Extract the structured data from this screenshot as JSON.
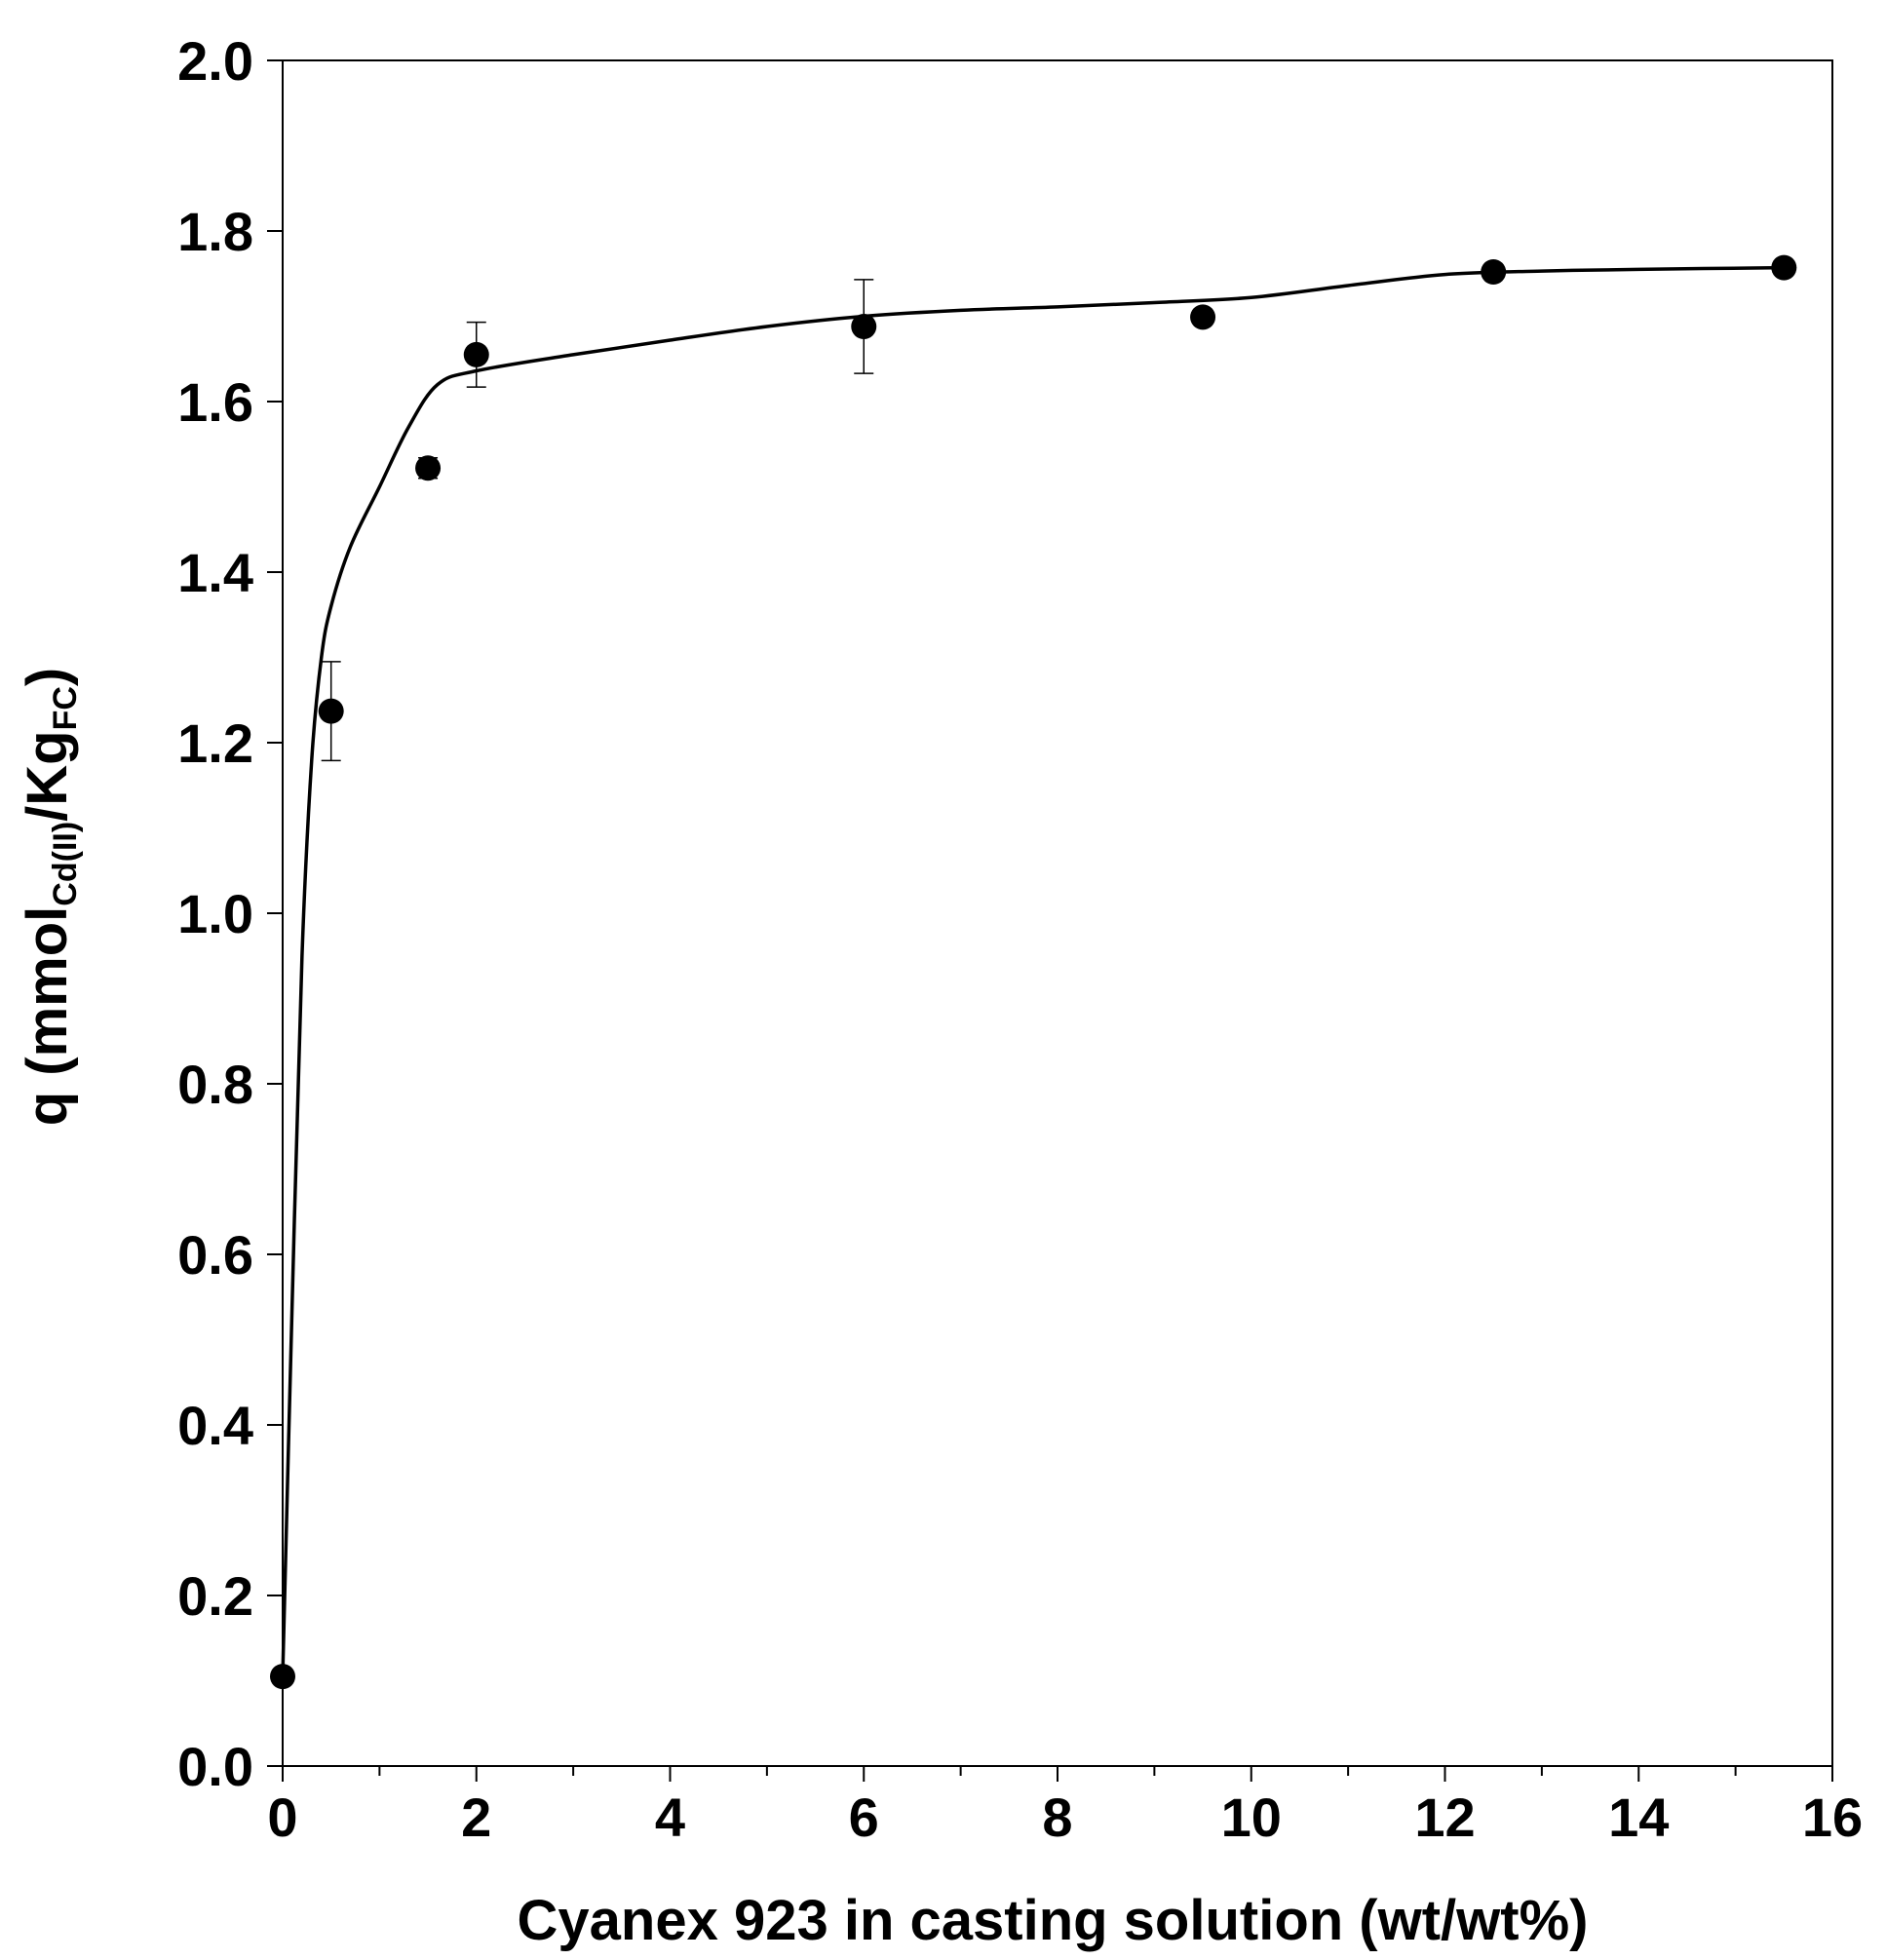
{
  "chart_data": {
    "type": "scatter",
    "title": "",
    "xlabel": "Cyanex 923 in casting solution (wt/wt%)",
    "ylabel": {
      "prefix": "q (mmol",
      "sub1": "Cd(II)",
      "mid": "/Kg",
      "sub2": "FC",
      "suffix": ")"
    },
    "xlim": [
      0,
      16
    ],
    "ylim": [
      0,
      2
    ],
    "x_ticks": [
      0,
      2,
      4,
      6,
      8,
      10,
      12,
      14,
      16
    ],
    "x_tick_labels": [
      "0",
      "2",
      "4",
      "6",
      "8",
      "10",
      "12",
      "14",
      "16"
    ],
    "y_ticks": [
      0,
      0.2,
      0.4,
      0.6,
      0.8,
      1.0,
      1.2,
      1.4,
      1.6,
      1.8,
      2.0
    ],
    "y_tick_labels": [
      "0.0",
      "0.2",
      "0.4",
      "0.6",
      "0.8",
      "1.0",
      "1.2",
      "1.4",
      "1.6",
      "1.8",
      "2.0"
    ],
    "grid": false,
    "series": [
      {
        "points": [
          {
            "x": 0,
            "y": 0.105,
            "err": 0
          },
          {
            "x": 0.5,
            "y": 1.237,
            "err": 0.058
          },
          {
            "x": 1.5,
            "y": 1.522,
            "err": 0.012
          },
          {
            "x": 2,
            "y": 1.655,
            "err": 0.038
          },
          {
            "x": 6,
            "y": 1.688,
            "err": 0.055
          },
          {
            "x": 9.5,
            "y": 1.699,
            "err": 0
          },
          {
            "x": 12.5,
            "y": 1.752,
            "err": 0
          },
          {
            "x": 15.5,
            "y": 1.757,
            "err": 0
          }
        ]
      }
    ],
    "fit_curve": [
      [
        0,
        0.105
      ],
      [
        0.1,
        0.55
      ],
      [
        0.2,
        0.95
      ],
      [
        0.3,
        1.18
      ],
      [
        0.4,
        1.3
      ],
      [
        0.5,
        1.36
      ],
      [
        0.7,
        1.43
      ],
      [
        1.0,
        1.5
      ],
      [
        1.3,
        1.57
      ],
      [
        1.6,
        1.62
      ],
      [
        2.0,
        1.636
      ],
      [
        3.0,
        1.655
      ],
      [
        4.0,
        1.672
      ],
      [
        5.0,
        1.688
      ],
      [
        6.0,
        1.7
      ],
      [
        7.0,
        1.707
      ],
      [
        8.0,
        1.711
      ],
      [
        9.0,
        1.716
      ],
      [
        10.0,
        1.722
      ],
      [
        11.0,
        1.736
      ],
      [
        12.0,
        1.749
      ],
      [
        13.0,
        1.753
      ],
      [
        14.0,
        1.755
      ],
      [
        15.5,
        1.757
      ]
    ],
    "colors": {
      "marker": "#000000",
      "line": "#000000",
      "axis": "#000000"
    }
  }
}
